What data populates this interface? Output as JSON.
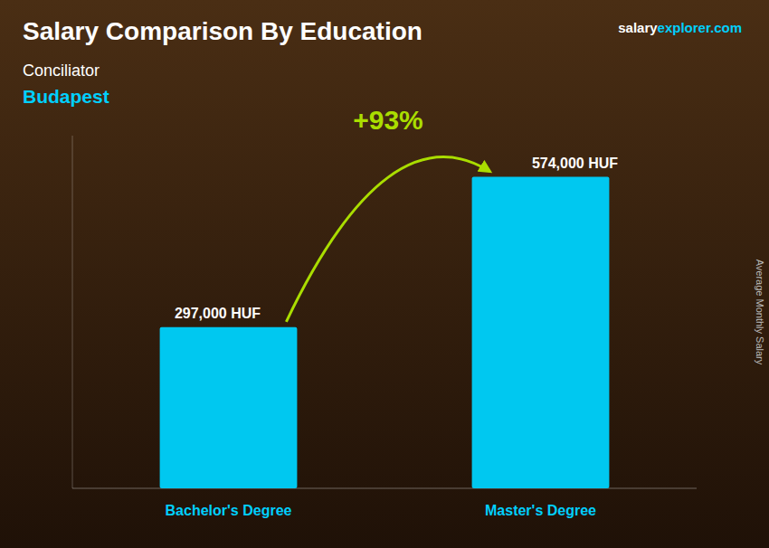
{
  "chart_data": {
    "type": "bar",
    "title": "Salary Comparison By Education",
    "subtitle": "Conciliator",
    "y_label": "Average Monthly Salary",
    "annotations": [
      "Budapest",
      "salary",
      "explorer.com",
      "+93%"
    ],
    "categories": [
      "Bachelor's Degree",
      "Master's Degree"
    ],
    "values": [
      297000,
      574000
    ],
    "value_labels": [
      "297,000 HUF",
      "574,000 HUF"
    ],
    "data_labels": true,
    "color": "#00C8F0",
    "ylim": [
      0,
      650000
    ],
    "tick_labels": false,
    "grid": false
  }
}
